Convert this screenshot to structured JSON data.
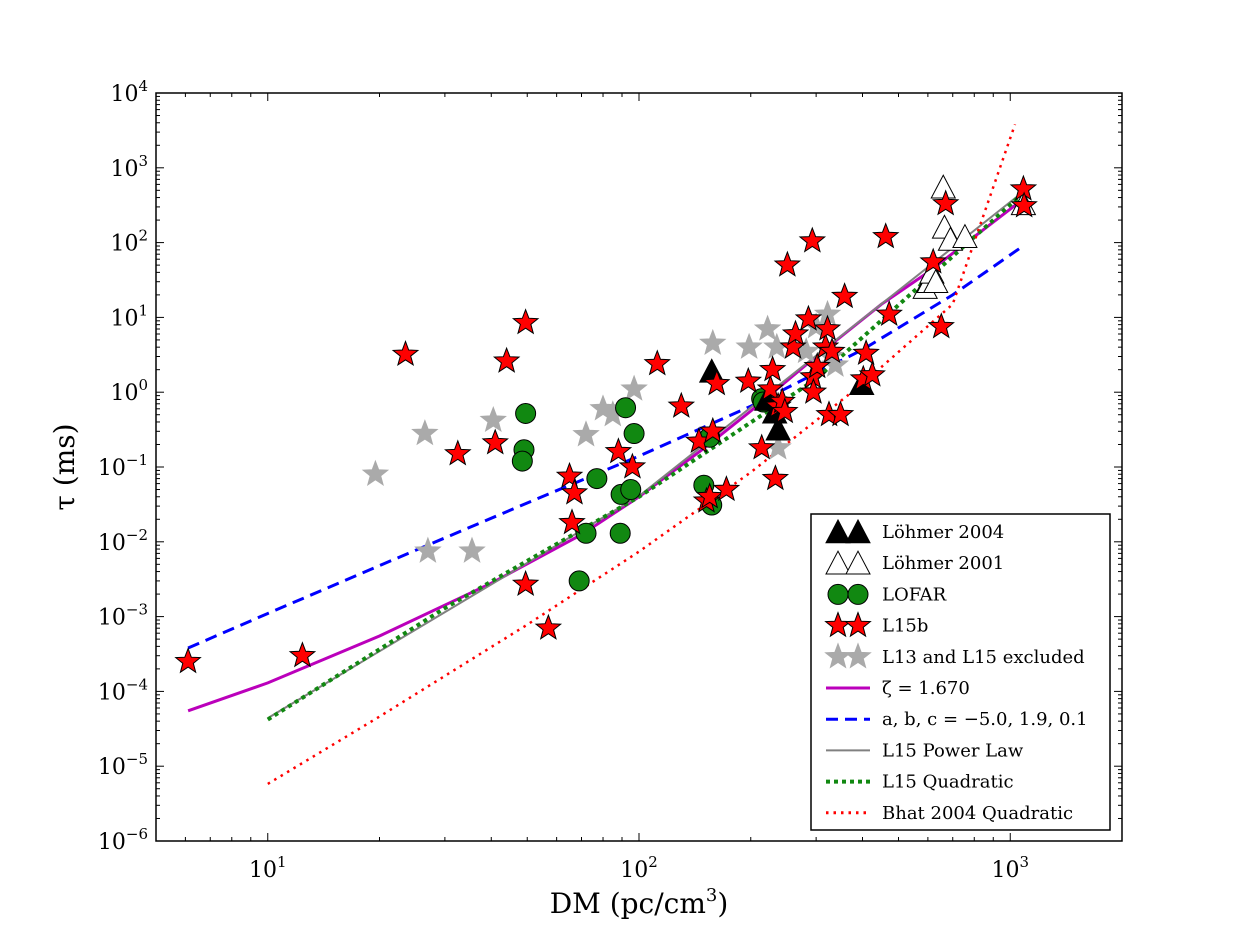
{
  "chart_data": {
    "type": "scatter",
    "title": "",
    "xlabel": "DM (pc/cm",
    "xlabel_sup": "3",
    "xlabel_end": ")",
    "ylabel": "τ (ms)",
    "xscale": "log",
    "yscale": "log",
    "xlim": [
      5,
      2000
    ],
    "ylim": [
      1e-06,
      10000
    ],
    "x_ticks": [
      {
        "value": 10,
        "base": "10",
        "exp": "1"
      },
      {
        "value": 100,
        "base": "10",
        "exp": "2"
      },
      {
        "value": 1000,
        "base": "10",
        "exp": "3"
      }
    ],
    "y_ticks": [
      {
        "value": 1e-06,
        "base": "10",
        "exp": "−6"
      },
      {
        "value": 1e-05,
        "base": "10",
        "exp": "−5"
      },
      {
        "value": 0.0001,
        "base": "10",
        "exp": "−4"
      },
      {
        "value": 0.001,
        "base": "10",
        "exp": "−3"
      },
      {
        "value": 0.01,
        "base": "10",
        "exp": "−2"
      },
      {
        "value": 0.1,
        "base": "10",
        "exp": "−1"
      },
      {
        "value": 1,
        "base": "10",
        "exp": "0"
      },
      {
        "value": 10,
        "base": "10",
        "exp": "1"
      },
      {
        "value": 100,
        "base": "10",
        "exp": "2"
      },
      {
        "value": 1000,
        "base": "10",
        "exp": "3"
      },
      {
        "value": 10000,
        "base": "10",
        "exp": "4"
      }
    ],
    "legend_position": "bottom-right",
    "scatter_series": [
      {
        "name": "L13 and L15 excluded",
        "marker": "star",
        "fill": "#aaaaaa",
        "stroke": "#aaaaaa",
        "points": [
          [
            19.5,
            0.08
          ],
          [
            26.5,
            0.28
          ],
          [
            27,
            0.0075
          ],
          [
            35.5,
            0.0075
          ],
          [
            40.5,
            0.42
          ],
          [
            72,
            0.27
          ],
          [
            80,
            0.6
          ],
          [
            85,
            0.5
          ],
          [
            97,
            1.1
          ],
          [
            158,
            4.5
          ],
          [
            198,
            4
          ],
          [
            222,
            7
          ],
          [
            235,
            4
          ],
          [
            237,
            0.18
          ],
          [
            282,
            3.5
          ],
          [
            300,
            7.5
          ],
          [
            322,
            11
          ],
          [
            328,
            3
          ],
          [
            338,
            2.3
          ]
        ]
      },
      {
        "name": "Löhmer 2001",
        "marker": "triangle-up",
        "fill": "#ffffff",
        "stroke": "#000000",
        "points": [
          [
            590,
            25
          ],
          [
            605,
            30
          ],
          [
            615,
            40
          ],
          [
            630,
            30
          ],
          [
            660,
            550
          ],
          [
            665,
            160
          ],
          [
            690,
            110
          ],
          [
            755,
            120
          ],
          [
            1085,
            330
          ]
        ]
      },
      {
        "name": "LOFAR",
        "marker": "circle",
        "fill": "#118811",
        "stroke": "#000000",
        "points": [
          [
            49.5,
            0.52
          ],
          [
            49,
            0.17
          ],
          [
            48.5,
            0.12
          ],
          [
            69,
            0.003
          ],
          [
            72,
            0.013
          ],
          [
            77,
            0.07
          ],
          [
            89.5,
            0.043
          ],
          [
            89,
            0.013
          ],
          [
            92,
            0.62
          ],
          [
            95,
            0.05
          ],
          [
            97,
            0.28
          ],
          [
            149.5,
            0.057
          ],
          [
            155,
            0.25
          ],
          [
            157,
            0.031
          ],
          [
            214,
            0.82
          ],
          [
            216,
            0.74
          ]
        ]
      },
      {
        "name": "Löhmer 2004",
        "marker": "triangle-up",
        "fill": "#000000",
        "stroke": "#000000",
        "points": [
          [
            157,
            1.9
          ],
          [
            221,
            0.8
          ],
          [
            232,
            0.54
          ],
          [
            237,
            0.32
          ],
          [
            398,
            1.3
          ]
        ]
      },
      {
        "name": "L15b",
        "marker": "star",
        "fill": "#ff0000",
        "stroke": "#000000",
        "points": [
          [
            6.1,
            0.00025
          ],
          [
            12.4,
            0.0003
          ],
          [
            23.5,
            3.2
          ],
          [
            32.5,
            0.15
          ],
          [
            41,
            0.21
          ],
          [
            44,
            2.6
          ],
          [
            49.5,
            8.5
          ],
          [
            49.5,
            0.0027
          ],
          [
            57,
            0.0007
          ],
          [
            65,
            0.075
          ],
          [
            66,
            0.018
          ],
          [
            67,
            0.045
          ],
          [
            88,
            0.16
          ],
          [
            96,
            0.1
          ],
          [
            112,
            2.4
          ],
          [
            130,
            0.65
          ],
          [
            145,
            0.22
          ],
          [
            152,
            0.035
          ],
          [
            155,
            0.04
          ],
          [
            158,
            0.3
          ],
          [
            162,
            1.3
          ],
          [
            172,
            0.05
          ],
          [
            197,
            1.4
          ],
          [
            214,
            0.18
          ],
          [
            226,
            1.1
          ],
          [
            229,
            2
          ],
          [
            233,
            0.07
          ],
          [
            237,
            0.65
          ],
          [
            243,
            0.75
          ],
          [
            247,
            0.55
          ],
          [
            251,
            50
          ],
          [
            260,
            4
          ],
          [
            264,
            6
          ],
          [
            286,
            9.5
          ],
          [
            293,
            105
          ],
          [
            294,
            1.6
          ],
          [
            295,
            1.0
          ],
          [
            302,
            2.2
          ],
          [
            318,
            4
          ],
          [
            322,
            7
          ],
          [
            325,
            0.5
          ],
          [
            331,
            3.5
          ],
          [
            349,
            0.5
          ],
          [
            358,
            19
          ],
          [
            402,
            1.5
          ],
          [
            409,
            3.3
          ],
          [
            425,
            1.7
          ],
          [
            462,
            120
          ],
          [
            472,
            11
          ],
          [
            620,
            55
          ],
          [
            652,
            7.5
          ],
          [
            670,
            330
          ],
          [
            1085,
            520
          ],
          [
            1090,
            310
          ]
        ]
      }
    ],
    "line_series": [
      {
        "name": "ζ = 1.670",
        "style": "solid",
        "color": "#bb00bb",
        "width": 3,
        "points": [
          [
            6.1,
            5.5e-05
          ],
          [
            10,
            0.00013
          ],
          [
            20,
            0.00055
          ],
          [
            40,
            0.0028
          ],
          [
            70,
            0.0125
          ],
          [
            100,
            0.04
          ],
          [
            150,
            0.18
          ],
          [
            200,
            0.56
          ],
          [
            300,
            3
          ],
          [
            450,
            15
          ],
          [
            600,
            40
          ],
          [
            1090,
            390
          ]
        ]
      },
      {
        "name": "a, b, c = −5.0, 1.9, 0.1",
        "style": "dashed",
        "color": "#0000ff",
        "width": 3,
        "points": [
          [
            6.1,
            0.00038
          ],
          [
            10,
            0.0011
          ],
          [
            20,
            0.0048
          ],
          [
            50,
            0.033
          ],
          [
            100,
            0.14
          ],
          [
            200,
            0.65
          ],
          [
            400,
            3.7
          ],
          [
            700,
            20
          ],
          [
            1090,
            92
          ]
        ]
      },
      {
        "name": "L15 Power Law",
        "style": "solid",
        "color": "#808080",
        "width": 2,
        "points": [
          [
            10,
            4.4e-05
          ],
          [
            100,
            0.041
          ],
          [
            1090,
            490
          ]
        ]
      },
      {
        "name": "L15 Quadratic",
        "style": "dotted-thick",
        "color": "#118811",
        "width": 4,
        "points": [
          [
            10,
            4.2e-05
          ],
          [
            30,
            0.0013
          ],
          [
            100,
            0.04
          ],
          [
            300,
            1.5
          ],
          [
            1090,
            470
          ]
        ]
      },
      {
        "name": "Bhat 2004 Quadratic",
        "style": "dotted",
        "color": "#ff0000",
        "width": 2.5,
        "points": [
          [
            10,
            5.8e-06
          ],
          [
            20,
            4.6e-05
          ],
          [
            50,
            0.00078
          ],
          [
            100,
            0.0074
          ],
          [
            200,
            0.085
          ],
          [
            400,
            1.3
          ],
          [
            700,
            15
          ],
          [
            1030,
            3800
          ]
        ]
      }
    ],
    "legend": [
      {
        "label": "Löhmer 2004",
        "kind": "marker",
        "marker": "triangle-up",
        "fill": "#000000",
        "stroke": "#000000"
      },
      {
        "label": "Löhmer 2001",
        "kind": "marker",
        "marker": "triangle-up",
        "fill": "#ffffff",
        "stroke": "#000000"
      },
      {
        "label": "LOFAR",
        "kind": "marker",
        "marker": "circle",
        "fill": "#118811",
        "stroke": "#000000"
      },
      {
        "label": "L15b",
        "kind": "marker",
        "marker": "star",
        "fill": "#ff0000",
        "stroke": "#000000"
      },
      {
        "label": "L13 and L15 excluded",
        "kind": "marker",
        "marker": "star",
        "fill": "#aaaaaa",
        "stroke": "#aaaaaa"
      },
      {
        "label": "ζ = 1.670",
        "kind": "line",
        "style": "solid",
        "color": "#bb00bb"
      },
      {
        "label": "a, b, c = −5.0, 1.9, 0.1",
        "kind": "line",
        "style": "dashed",
        "color": "#0000ff"
      },
      {
        "label": "L15 Power Law",
        "kind": "line",
        "style": "solid",
        "color": "#808080"
      },
      {
        "label": "L15 Quadratic",
        "kind": "line",
        "style": "dotted-thick",
        "color": "#118811"
      },
      {
        "label": "Bhat 2004 Quadratic",
        "kind": "line",
        "style": "dotted",
        "color": "#ff0000"
      }
    ]
  }
}
